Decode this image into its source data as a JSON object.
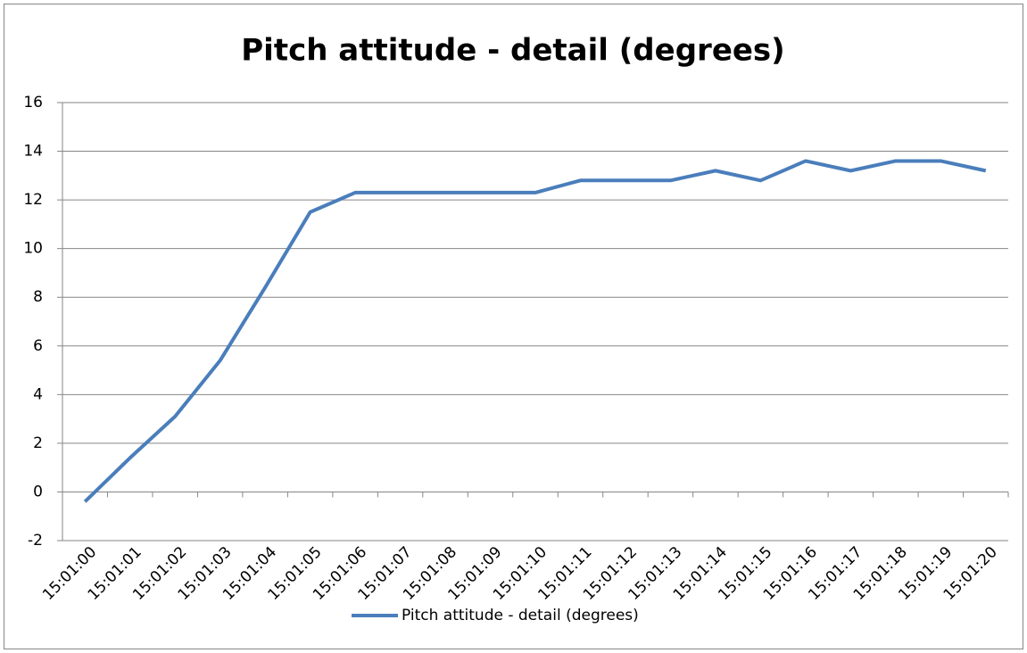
{
  "chart_data": {
    "type": "line",
    "title": "Pitch attitude - detail (degrees)",
    "categories": [
      "15:01:00",
      "15:01:01",
      "15:01:02",
      "15:01:03",
      "15:01:04",
      "15:01:05",
      "15:01:06",
      "15:01:07",
      "15:01:08",
      "15:01:09",
      "15:01:10",
      "15:01:11",
      "15:01:12",
      "15:01:13",
      "15:01:14",
      "15:01:15",
      "15:01:16",
      "15:01:17",
      "15:01:18",
      "15:01:19",
      "15:01:20"
    ],
    "series": [
      {
        "name": "Pitch attitude - detail (degrees)",
        "color": "#4a7ebb",
        "values": [
          -0.4,
          1.4,
          3.1,
          5.4,
          8.4,
          11.5,
          12.3,
          12.3,
          12.3,
          12.3,
          12.3,
          12.8,
          12.8,
          12.8,
          13.2,
          12.8,
          13.6,
          13.2,
          13.6,
          13.6,
          13.2
        ]
      }
    ],
    "ylim": [
      -2,
      16
    ],
    "yticks": [
      -2,
      0,
      2,
      4,
      6,
      8,
      10,
      12,
      14,
      16
    ],
    "grid": true,
    "legend": "bottom"
  }
}
